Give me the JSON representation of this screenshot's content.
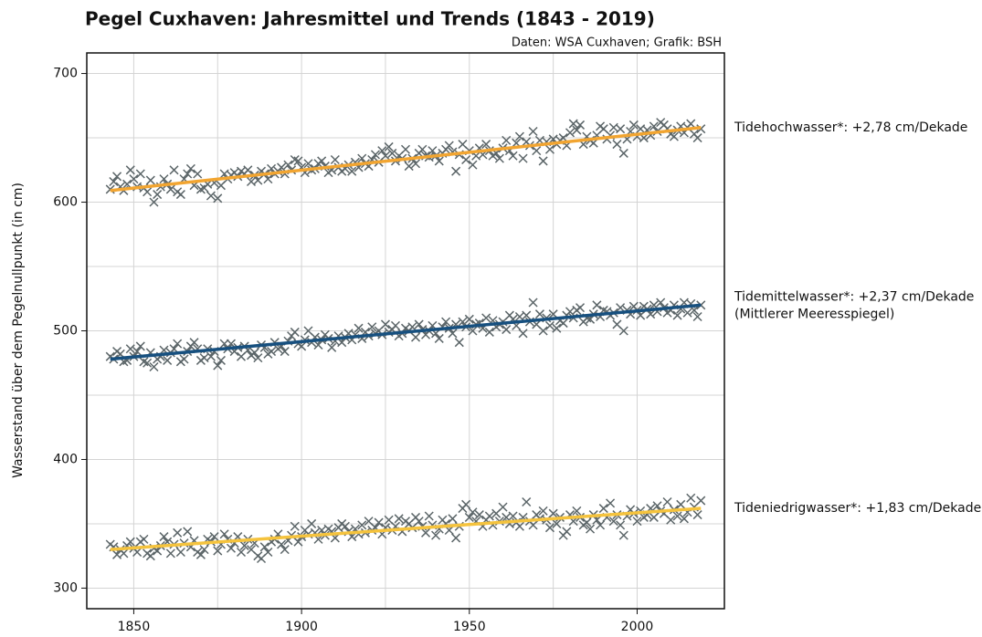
{
  "chart_data": {
    "type": "scatter",
    "title": "Pegel Cuxhaven: Jahresmittel und Trends (1843 - 2019)",
    "subtitle": "Daten: WSA Cuxhaven; Grafik: BSH",
    "y_label": "Wasserstand über dem Pegelnullpunkt (in cm)",
    "xlim": [
      1836,
      2026
    ],
    "ylim": [
      284,
      716
    ],
    "xticks": [
      1850,
      1900,
      1950,
      2000
    ],
    "yticks": [
      300,
      400,
      500,
      600,
      700
    ],
    "minor_xticks": [
      1875,
      1925,
      1975
    ],
    "minor_yticks": [
      350,
      450,
      550,
      650
    ],
    "grid": true,
    "marker_color": "#5b6568",
    "trend_x": [
      1843,
      2019
    ],
    "x": [
      1843,
      1844,
      1845,
      1846,
      1847,
      1848,
      1849,
      1850,
      1851,
      1852,
      1853,
      1854,
      1855,
      1856,
      1857,
      1858,
      1859,
      1860,
      1861,
      1862,
      1863,
      1864,
      1865,
      1866,
      1867,
      1868,
      1869,
      1870,
      1871,
      1872,
      1873,
      1874,
      1875,
      1876,
      1877,
      1878,
      1879,
      1880,
      1881,
      1882,
      1883,
      1884,
      1885,
      1886,
      1887,
      1888,
      1889,
      1890,
      1891,
      1892,
      1893,
      1894,
      1895,
      1896,
      1897,
      1898,
      1899,
      1900,
      1901,
      1902,
      1903,
      1904,
      1905,
      1906,
      1907,
      1908,
      1909,
      1910,
      1911,
      1912,
      1913,
      1914,
      1915,
      1916,
      1917,
      1918,
      1919,
      1920,
      1921,
      1922,
      1923,
      1924,
      1925,
      1926,
      1927,
      1928,
      1929,
      1930,
      1931,
      1932,
      1933,
      1934,
      1935,
      1936,
      1937,
      1938,
      1939,
      1940,
      1941,
      1942,
      1943,
      1944,
      1945,
      1946,
      1947,
      1948,
      1949,
      1950,
      1951,
      1952,
      1953,
      1954,
      1955,
      1956,
      1957,
      1958,
      1959,
      1960,
      1961,
      1962,
      1963,
      1964,
      1965,
      1966,
      1967,
      1968,
      1969,
      1970,
      1971,
      1972,
      1973,
      1974,
      1975,
      1976,
      1977,
      1978,
      1979,
      1980,
      1981,
      1982,
      1983,
      1984,
      1985,
      1986,
      1987,
      1988,
      1989,
      1990,
      1991,
      1992,
      1993,
      1994,
      1995,
      1996,
      1997,
      1998,
      1999,
      2000,
      2001,
      2002,
      2003,
      2004,
      2005,
      2006,
      2007,
      2008,
      2009,
      2010,
      2011,
      2012,
      2013,
      2014,
      2015,
      2016,
      2017,
      2018,
      2019
    ],
    "series": [
      {
        "label_lines": [
          "Tidehochwasser*: +2,78 cm/Dekade"
        ],
        "color": "#f2a531",
        "trend": [
          609,
          658
        ],
        "values": [
          610,
          616,
          620,
          612,
          609,
          614,
          625,
          618,
          612,
          622,
          611,
          608,
          617,
          600,
          606,
          612,
          618,
          614,
          610,
          625,
          608,
          606,
          618,
          622,
          626,
          613,
          622,
          610,
          611,
          614,
          605,
          615,
          603,
          613,
          622,
          618,
          621,
          623,
          620,
          624,
          622,
          625,
          616,
          621,
          617,
          624,
          622,
          618,
          626,
          622,
          624,
          627,
          622,
          629,
          625,
          633,
          632,
          627,
          623,
          630,
          625,
          626,
          630,
          632,
          628,
          623,
          625,
          633,
          627,
          624,
          626,
          629,
          624,
          631,
          627,
          634,
          630,
          628,
          633,
          637,
          631,
          640,
          636,
          643,
          638,
          632,
          636,
          634,
          641,
          628,
          634,
          630,
          638,
          641,
          636,
          635,
          640,
          636,
          632,
          638,
          641,
          644,
          639,
          624,
          637,
          645,
          633,
          640,
          629,
          636,
          642,
          637,
          645,
          640,
          636,
          638,
          634,
          642,
          648,
          640,
          636,
          646,
          651,
          634,
          647,
          644,
          655,
          640,
          648,
          632,
          647,
          641,
          649,
          645,
          648,
          650,
          644,
          654,
          661,
          656,
          660,
          645,
          651,
          648,
          646,
          652,
          659,
          657,
          649,
          652,
          658,
          645,
          657,
          638,
          649,
          655,
          660,
          651,
          657,
          650,
          656,
          652,
          659,
          655,
          662,
          660,
          657,
          653,
          651,
          656,
          659,
          654,
          658,
          661,
          653,
          650,
          657
        ]
      },
      {
        "label_lines": [
          "Tidemittelwasser*: +2,37 cm/Dekade",
          "(Mittlerer Meeresspiegel)"
        ],
        "color": "#17507f",
        "trend": [
          478,
          520
        ],
        "values": [
          480,
          478,
          484,
          482,
          476,
          477,
          486,
          480,
          484,
          488,
          476,
          475,
          483,
          472,
          478,
          480,
          485,
          477,
          483,
          486,
          490,
          476,
          478,
          484,
          488,
          491,
          486,
          477,
          479,
          486,
          480,
          484,
          473,
          477,
          490,
          486,
          490,
          484,
          487,
          480,
          488,
          485,
          481,
          483,
          479,
          489,
          487,
          482,
          484,
          491,
          486,
          488,
          484,
          492,
          496,
          499,
          490,
          488,
          493,
          500,
          491,
          495,
          489,
          493,
          497,
          494,
          487,
          492,
          496,
          491,
          495,
          498,
          493,
          497,
          502,
          494,
          499,
          496,
          503,
          498,
          500,
          497,
          505,
          499,
          501,
          504,
          496,
          498,
          502,
          500,
          503,
          495,
          505,
          501,
          497,
          500,
          504,
          498,
          494,
          503,
          507,
          502,
          498,
          505,
          491,
          507,
          503,
          509,
          500,
          505,
          506,
          502,
          510,
          499,
          508,
          503,
          505,
          507,
          501,
          512,
          509,
          504,
          511,
          498,
          512,
          507,
          522,
          505,
          513,
          500,
          510,
          504,
          513,
          502,
          508,
          506,
          512,
          515,
          510,
          516,
          518,
          507,
          510,
          509,
          513,
          520,
          511,
          516,
          515,
          512,
          514,
          505,
          518,
          500,
          516,
          513,
          519,
          516,
          512,
          519,
          517,
          513,
          520,
          515,
          522,
          518,
          514,
          516,
          520,
          512,
          517,
          522,
          514,
          521,
          516,
          511,
          520
        ]
      },
      {
        "label_lines": [
          "Tideniedrigwasser*: +1,83 cm/Dekade"
        ],
        "color": "#f5c33d",
        "trend": [
          330,
          362
        ],
        "values": [
          334,
          332,
          326,
          330,
          327,
          333,
          336,
          331,
          328,
          336,
          338,
          327,
          325,
          331,
          329,
          333,
          340,
          336,
          327,
          334,
          343,
          328,
          335,
          344,
          332,
          337,
          328,
          326,
          330,
          338,
          336,
          340,
          329,
          334,
          342,
          338,
          331,
          335,
          340,
          328,
          333,
          338,
          330,
          335,
          325,
          323,
          332,
          328,
          336,
          338,
          342,
          334,
          330,
          337,
          341,
          348,
          336,
          340,
          345,
          342,
          350,
          343,
          338,
          345,
          341,
          346,
          344,
          339,
          347,
          350,
          348,
          344,
          340,
          346,
          342,
          349,
          343,
          352,
          345,
          347,
          351,
          342,
          347,
          353,
          345,
          348,
          354,
          344,
          352,
          350,
          347,
          355,
          352,
          348,
          343,
          356,
          349,
          341,
          346,
          353,
          350,
          345,
          354,
          339,
          348,
          362,
          365,
          355,
          359,
          352,
          357,
          348,
          353,
          356,
          349,
          358,
          352,
          363,
          355,
          350,
          356,
          351,
          348,
          355,
          367,
          352,
          349,
          357,
          354,
          360,
          353,
          347,
          358,
          350,
          355,
          341,
          344,
          357,
          352,
          360,
          355,
          349,
          351,
          346,
          357,
          353,
          349,
          362,
          355,
          366,
          352,
          357,
          349,
          341,
          356,
          361,
          358,
          352,
          360,
          355,
          357,
          362,
          355,
          364,
          360,
          358,
          367,
          353,
          361,
          356,
          365,
          354,
          359,
          370,
          363,
          357,
          368
        ]
      }
    ]
  }
}
